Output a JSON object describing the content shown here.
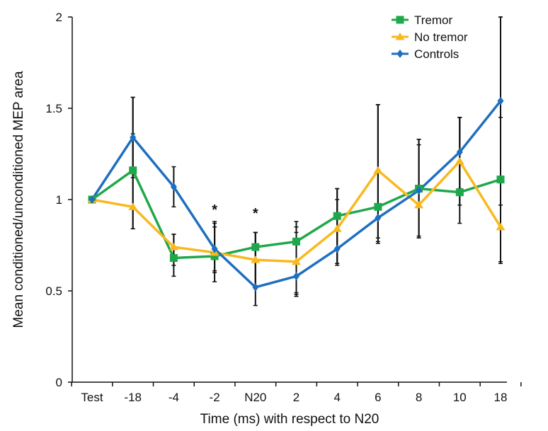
{
  "chart_data": {
    "type": "line",
    "title": "",
    "xlabel": "Time (ms) with respect to N20",
    "ylabel": "Mean conditioned/unconditioned MEP area",
    "categories": [
      "Test",
      "-18",
      "-4",
      "-2",
      "N20",
      "2",
      "4",
      "6",
      "8",
      "10",
      "18"
    ],
    "ylim": [
      0,
      2
    ],
    "yticks": [
      0,
      0.5,
      1,
      1.5,
      2
    ],
    "ytick_labels": [
      "0",
      "0.5",
      "1",
      "1.5",
      "2"
    ],
    "grid": false,
    "legend_position": "top-right",
    "series": [
      {
        "name": "Tremor",
        "color": "#1fa84a",
        "marker": "square",
        "values": [
          1.0,
          1.16,
          0.68,
          0.69,
          0.74,
          0.77,
          0.91,
          0.96,
          1.06,
          1.04,
          1.11
        ],
        "err_low": [
          1.0,
          0.84,
          0.58,
          0.55,
          0.52,
          0.47,
          0.64,
          0.76,
          0.79,
          0.87,
          0.65
        ],
        "err_high": [
          1.0,
          1.56,
          0.81,
          0.88,
          0.82,
          0.88,
          1.06,
          1.52,
          1.33,
          1.45,
          2.0
        ]
      },
      {
        "name": "No tremor",
        "color": "#f9b91e",
        "marker": "triangle",
        "values": [
          1.0,
          0.96,
          0.74,
          0.71,
          0.67,
          0.66,
          0.84,
          1.16,
          0.97,
          1.21,
          0.85
        ],
        "err_low": [
          1.0,
          0.84,
          0.64,
          0.6,
          0.52,
          0.49,
          0.65,
          0.77,
          0.8,
          0.97,
          0.66
        ],
        "err_high": [
          1.0,
          1.36,
          0.81,
          0.87,
          0.82,
          0.85,
          1.0,
          1.52,
          1.3,
          1.45,
          1.45
        ]
      },
      {
        "name": "Controls",
        "color": "#1e6fbf",
        "marker": "diamond",
        "values": [
          1.0,
          1.34,
          1.07,
          0.73,
          0.52,
          0.58,
          0.73,
          0.9,
          1.05,
          1.26,
          1.54
        ],
        "err_low": [
          1.0,
          1.12,
          0.96,
          0.61,
          0.42,
          0.48,
          0.65,
          0.79,
          0.79,
          1.06,
          0.97
        ],
        "err_high": [
          1.0,
          1.56,
          1.18,
          0.85,
          0.82,
          0.82,
          1.06,
          1.52,
          1.33,
          1.45,
          2.0
        ]
      }
    ],
    "annotations": [
      {
        "text": "*",
        "category": "-2",
        "y": 0.95
      },
      {
        "text": "*",
        "category": "N20",
        "y": 0.93
      }
    ]
  }
}
